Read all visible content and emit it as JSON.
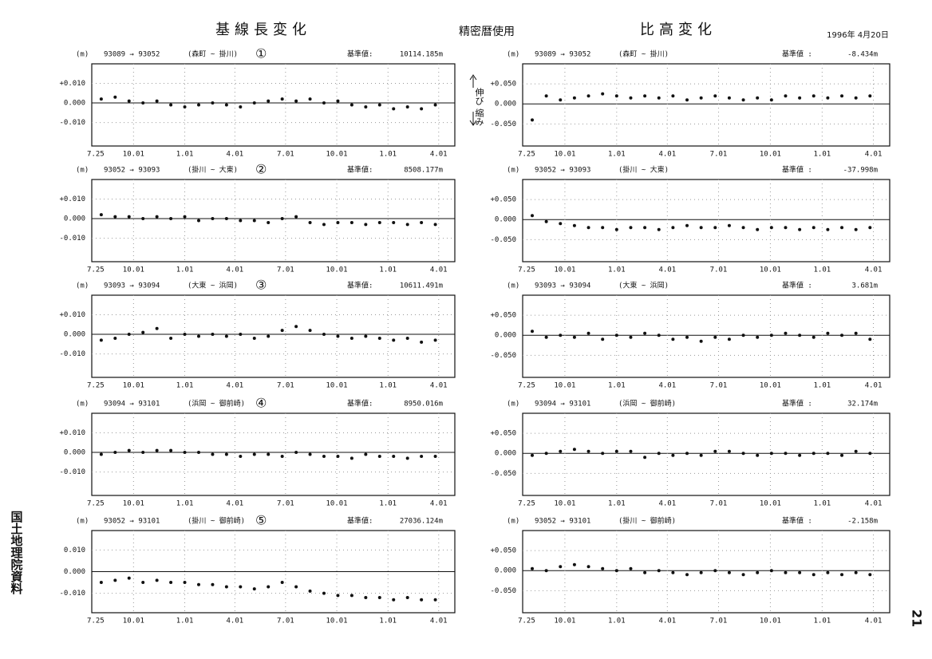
{
  "header": {
    "left_title": "基線長変化",
    "center_title": "精密暦使用",
    "right_title": "比高変化",
    "date": "1996年 4月20日"
  },
  "annotations": {
    "stretch": "伸び",
    "shrink": "縮み"
  },
  "footer": {
    "source": "国土地理院資料",
    "page": "21"
  },
  "chart_data": [
    {
      "type": "scatter",
      "unit": "(m)",
      "baseline": "93089 → 93052",
      "stations": "(森町 ~ 掛川)",
      "label": "①",
      "ref_label": "基準値:",
      "ref_value": "10114.185m",
      "color": "#111",
      "grid": true,
      "xlim": [
        -7,
        645
      ],
      "xticks": [
        {
          "value": 0,
          "label": "7.25"
        },
        {
          "value": 68,
          "label": "10.01"
        },
        {
          "value": 160,
          "label": "1.01"
        },
        {
          "value": 250,
          "label": "4.01"
        },
        {
          "value": 341,
          "label": "7.01"
        },
        {
          "value": 433,
          "label": "10.01"
        },
        {
          "value": 525,
          "label": "1.01"
        },
        {
          "value": 616,
          "label": "4.01"
        }
      ],
      "ylim": [
        -0.022,
        0.02
      ],
      "yticks": [
        {
          "value": 0.01,
          "label": "+0.010"
        },
        {
          "value": 0,
          "label": "0.000"
        },
        {
          "value": -0.01,
          "label": "-0.010"
        }
      ],
      "x": [
        10,
        35,
        60,
        85,
        110,
        135,
        160,
        185,
        210,
        235,
        260,
        285,
        310,
        335,
        360,
        385,
        410,
        435,
        460,
        485,
        510,
        535,
        560,
        585,
        610
      ],
      "values": [
        0.002,
        0.003,
        0.001,
        0.0,
        0.001,
        -0.001,
        -0.002,
        -0.001,
        0.0,
        -0.001,
        -0.002,
        0.0,
        0.001,
        0.002,
        0.001,
        0.002,
        0.0,
        0.001,
        -0.001,
        -0.002,
        -0.001,
        -0.003,
        -0.002,
        -0.003,
        -0.001
      ]
    },
    {
      "type": "scatter",
      "unit": "(m)",
      "baseline": "93052 → 93093",
      "stations": "(掛川 ~ 大東)",
      "label": "②",
      "ref_label": "基準値:",
      "ref_value": "8508.177m",
      "color": "#111",
      "grid": true,
      "xlim": [
        -7,
        645
      ],
      "xticks": [
        {
          "value": 0,
          "label": "7.25"
        },
        {
          "value": 68,
          "label": "10.01"
        },
        {
          "value": 160,
          "label": "1.01"
        },
        {
          "value": 250,
          "label": "4.01"
        },
        {
          "value": 341,
          "label": "7.01"
        },
        {
          "value": 433,
          "label": "10.01"
        },
        {
          "value": 525,
          "label": "1.01"
        },
        {
          "value": 616,
          "label": "4.01"
        }
      ],
      "ylim": [
        -0.022,
        0.02
      ],
      "yticks": [
        {
          "value": 0.01,
          "label": "+0.010"
        },
        {
          "value": 0,
          "label": "0.000"
        },
        {
          "value": -0.01,
          "label": "-0.010"
        }
      ],
      "x": [
        10,
        35,
        60,
        85,
        110,
        135,
        160,
        185,
        210,
        235,
        260,
        285,
        310,
        335,
        360,
        385,
        410,
        435,
        460,
        485,
        510,
        535,
        560,
        585,
        610
      ],
      "values": [
        0.002,
        0.001,
        0.001,
        0.0,
        0.001,
        0.0,
        0.001,
        -0.001,
        0.0,
        0.0,
        -0.001,
        -0.001,
        -0.002,
        0.0,
        0.001,
        -0.002,
        -0.003,
        -0.002,
        -0.002,
        -0.003,
        -0.002,
        -0.002,
        -0.003,
        -0.002,
        -0.003
      ]
    },
    {
      "type": "scatter",
      "unit": "(m)",
      "baseline": "93093 → 93094",
      "stations": "(大東 ~ 浜岡)",
      "label": "③",
      "ref_label": "基準値:",
      "ref_value": "10611.491m",
      "color": "#111",
      "grid": true,
      "xlim": [
        -7,
        645
      ],
      "xticks": [
        {
          "value": 0,
          "label": "7.25"
        },
        {
          "value": 68,
          "label": "10.01"
        },
        {
          "value": 160,
          "label": "1.01"
        },
        {
          "value": 250,
          "label": "4.01"
        },
        {
          "value": 341,
          "label": "7.01"
        },
        {
          "value": 433,
          "label": "10.01"
        },
        {
          "value": 525,
          "label": "1.01"
        },
        {
          "value": 616,
          "label": "4.01"
        }
      ],
      "ylim": [
        -0.022,
        0.02
      ],
      "yticks": [
        {
          "value": 0.01,
          "label": "+0.010"
        },
        {
          "value": 0,
          "label": "0.000"
        },
        {
          "value": -0.01,
          "label": "-0.010"
        }
      ],
      "x": [
        10,
        35,
        60,
        85,
        110,
        135,
        160,
        185,
        210,
        235,
        260,
        285,
        310,
        335,
        360,
        385,
        410,
        435,
        460,
        485,
        510,
        535,
        560,
        585,
        610
      ],
      "values": [
        -0.003,
        -0.002,
        0.0,
        0.001,
        0.003,
        -0.002,
        0.0,
        -0.001,
        0.0,
        -0.001,
        0.0,
        -0.002,
        -0.001,
        0.002,
        0.004,
        0.002,
        0.0,
        -0.001,
        -0.002,
        -0.001,
        -0.002,
        -0.003,
        -0.002,
        -0.004,
        -0.003
      ]
    },
    {
      "type": "scatter",
      "unit": "(m)",
      "baseline": "93094 → 93101",
      "stations": "(浜岡 ~ 御前崎)",
      "label": "④",
      "ref_label": "基準値:",
      "ref_value": "8950.016m",
      "color": "#111",
      "grid": true,
      "xlim": [
        -7,
        645
      ],
      "xticks": [
        {
          "value": 0,
          "label": "7.25"
        },
        {
          "value": 68,
          "label": "10.01"
        },
        {
          "value": 160,
          "label": "1.01"
        },
        {
          "value": 250,
          "label": "4.01"
        },
        {
          "value": 341,
          "label": "7.01"
        },
        {
          "value": 433,
          "label": "10.01"
        },
        {
          "value": 525,
          "label": "1.01"
        },
        {
          "value": 616,
          "label": "4.01"
        }
      ],
      "ylim": [
        -0.022,
        0.02
      ],
      "yticks": [
        {
          "value": 0.01,
          "label": "+0.010"
        },
        {
          "value": 0,
          "label": "0.000"
        },
        {
          "value": -0.01,
          "label": "-0.010"
        }
      ],
      "x": [
        10,
        35,
        60,
        85,
        110,
        135,
        160,
        185,
        210,
        235,
        260,
        285,
        310,
        335,
        360,
        385,
        410,
        435,
        460,
        485,
        510,
        535,
        560,
        585,
        610
      ],
      "values": [
        -0.001,
        0.0,
        0.001,
        0.0,
        0.001,
        0.001,
        0.0,
        0.0,
        -0.001,
        -0.001,
        -0.002,
        -0.001,
        -0.001,
        -0.002,
        0.0,
        -0.001,
        -0.002,
        -0.002,
        -0.003,
        -0.001,
        -0.002,
        -0.002,
        -0.003,
        -0.002,
        -0.002
      ]
    },
    {
      "type": "scatter",
      "unit": "(m)",
      "baseline": "93052 → 93101",
      "stations": "(掛川 ~ 御前崎)",
      "label": "⑤",
      "ref_label": "基準値:",
      "ref_value": "27036.124m",
      "color": "#111",
      "grid": true,
      "xlim": [
        -7,
        645
      ],
      "xticks": [
        {
          "value": 0,
          "label": "7.25"
        },
        {
          "value": 68,
          "label": "10.01"
        },
        {
          "value": 160,
          "label": "1.01"
        },
        {
          "value": 250,
          "label": "4.01"
        },
        {
          "value": 341,
          "label": "7.01"
        },
        {
          "value": 433,
          "label": "10.01"
        },
        {
          "value": 525,
          "label": "1.01"
        },
        {
          "value": 616,
          "label": "4.01"
        }
      ],
      "ylim": [
        -0.019,
        0.019
      ],
      "yticks": [
        {
          "value": 0.01,
          "label": "0.010"
        },
        {
          "value": 0,
          "label": "0.000"
        },
        {
          "value": -0.01,
          "label": "-0.010"
        }
      ],
      "x": [
        10,
        35,
        60,
        85,
        110,
        135,
        160,
        185,
        210,
        235,
        260,
        285,
        310,
        335,
        360,
        385,
        410,
        435,
        460,
        485,
        510,
        535,
        560,
        585,
        610
      ],
      "values": [
        -0.005,
        -0.004,
        -0.003,
        -0.005,
        -0.004,
        -0.005,
        -0.005,
        -0.006,
        -0.006,
        -0.007,
        -0.007,
        -0.008,
        -0.007,
        -0.005,
        -0.007,
        -0.009,
        -0.01,
        -0.011,
        -0.011,
        -0.012,
        -0.012,
        -0.013,
        -0.012,
        -0.013,
        -0.013
      ]
    },
    {
      "type": "scatter",
      "unit": "(m)",
      "baseline": "93089 → 93052",
      "stations": "(森町 ~ 掛川)",
      "ref_label": "基準値 :",
      "ref_value": "-8.434m",
      "color": "#111",
      "grid": true,
      "xlim": [
        -7,
        645
      ],
      "xticks": [
        {
          "value": 0,
          "label": "7.25"
        },
        {
          "value": 68,
          "label": "10.01"
        },
        {
          "value": 160,
          "label": "1.01"
        },
        {
          "value": 250,
          "label": "4.01"
        },
        {
          "value": 341,
          "label": "7.01"
        },
        {
          "value": 433,
          "label": "10.01"
        },
        {
          "value": 525,
          "label": "1.01"
        },
        {
          "value": 616,
          "label": "4.01"
        }
      ],
      "ylim": [
        -0.105,
        0.1
      ],
      "yticks": [
        {
          "value": 0.05,
          "label": "+0.050"
        },
        {
          "value": 0,
          "label": "0.000"
        },
        {
          "value": -0.05,
          "label": "-0.050"
        }
      ],
      "x": [
        10,
        35,
        60,
        85,
        110,
        135,
        160,
        185,
        210,
        235,
        260,
        285,
        310,
        335,
        360,
        385,
        410,
        435,
        460,
        485,
        510,
        535,
        560,
        585,
        610
      ],
      "values": [
        -0.04,
        0.02,
        0.01,
        0.015,
        0.02,
        0.025,
        0.02,
        0.015,
        0.02,
        0.015,
        0.02,
        0.01,
        0.015,
        0.02,
        0.015,
        0.01,
        0.015,
        0.01,
        0.02,
        0.015,
        0.02,
        0.015,
        0.02,
        0.015,
        0.02
      ]
    },
    {
      "type": "scatter",
      "unit": "(m)",
      "baseline": "93052 → 93093",
      "stations": "(掛川 ~ 大東)",
      "ref_label": "基準値 :",
      "ref_value": "-37.998m",
      "color": "#111",
      "grid": true,
      "xlim": [
        -7,
        645
      ],
      "xticks": [
        {
          "value": 0,
          "label": "7.25"
        },
        {
          "value": 68,
          "label": "10.01"
        },
        {
          "value": 160,
          "label": "1.01"
        },
        {
          "value": 250,
          "label": "4.01"
        },
        {
          "value": 341,
          "label": "7.01"
        },
        {
          "value": 433,
          "label": "10.01"
        },
        {
          "value": 525,
          "label": "1.01"
        },
        {
          "value": 616,
          "label": "4.01"
        }
      ],
      "ylim": [
        -0.105,
        0.1
      ],
      "yticks": [
        {
          "value": 0.05,
          "label": "+0.050"
        },
        {
          "value": 0,
          "label": "0.000"
        },
        {
          "value": -0.05,
          "label": "-0.050"
        }
      ],
      "x": [
        10,
        35,
        60,
        85,
        110,
        135,
        160,
        185,
        210,
        235,
        260,
        285,
        310,
        335,
        360,
        385,
        410,
        435,
        460,
        485,
        510,
        535,
        560,
        585,
        610
      ],
      "values": [
        0.01,
        -0.005,
        -0.01,
        -0.015,
        -0.02,
        -0.02,
        -0.025,
        -0.02,
        -0.02,
        -0.025,
        -0.02,
        -0.015,
        -0.02,
        -0.02,
        -0.015,
        -0.02,
        -0.025,
        -0.02,
        -0.02,
        -0.025,
        -0.02,
        -0.025,
        -0.02,
        -0.025,
        -0.02
      ]
    },
    {
      "type": "scatter",
      "unit": "(m)",
      "baseline": "93093 → 93094",
      "stations": "(大東 ~ 浜岡)",
      "ref_label": "基準値 :",
      "ref_value": "3.681m",
      "color": "#111",
      "grid": true,
      "xlim": [
        -7,
        645
      ],
      "xticks": [
        {
          "value": 0,
          "label": "7.25"
        },
        {
          "value": 68,
          "label": "10.01"
        },
        {
          "value": 160,
          "label": "1.01"
        },
        {
          "value": 250,
          "label": "4.01"
        },
        {
          "value": 341,
          "label": "7.01"
        },
        {
          "value": 433,
          "label": "10.01"
        },
        {
          "value": 525,
          "label": "1.01"
        },
        {
          "value": 616,
          "label": "4.01"
        }
      ],
      "ylim": [
        -0.105,
        0.1
      ],
      "yticks": [
        {
          "value": 0.05,
          "label": "+0.050"
        },
        {
          "value": 0,
          "label": "0.000"
        },
        {
          "value": -0.05,
          "label": "-0.050"
        }
      ],
      "x": [
        10,
        35,
        60,
        85,
        110,
        135,
        160,
        185,
        210,
        235,
        260,
        285,
        310,
        335,
        360,
        385,
        410,
        435,
        460,
        485,
        510,
        535,
        560,
        585,
        610
      ],
      "values": [
        0.01,
        -0.005,
        0.0,
        -0.005,
        0.005,
        -0.01,
        0.0,
        -0.005,
        0.005,
        0.0,
        -0.01,
        -0.005,
        -0.015,
        -0.005,
        -0.01,
        0.0,
        -0.005,
        0.0,
        0.005,
        0.0,
        -0.005,
        0.005,
        0.0,
        0.005,
        -0.01
      ]
    },
    {
      "type": "scatter",
      "unit": "(m)",
      "baseline": "93094 → 93101",
      "stations": "(浜岡 ~ 御前崎)",
      "ref_label": "基準値 :",
      "ref_value": "32.174m",
      "color": "#111",
      "grid": true,
      "xlim": [
        -7,
        645
      ],
      "xticks": [
        {
          "value": 0,
          "label": "7.25"
        },
        {
          "value": 68,
          "label": "10.01"
        },
        {
          "value": 160,
          "label": "1.01"
        },
        {
          "value": 250,
          "label": "4.01"
        },
        {
          "value": 341,
          "label": "7.01"
        },
        {
          "value": 433,
          "label": "10.01"
        },
        {
          "value": 525,
          "label": "1.01"
        },
        {
          "value": 616,
          "label": "4.01"
        }
      ],
      "ylim": [
        -0.105,
        0.1
      ],
      "yticks": [
        {
          "value": 0.05,
          "label": "+0.050"
        },
        {
          "value": 0,
          "label": "0.000"
        },
        {
          "value": -0.05,
          "label": "-0.050"
        }
      ],
      "x": [
        10,
        35,
        60,
        85,
        110,
        135,
        160,
        185,
        210,
        235,
        260,
        285,
        310,
        335,
        360,
        385,
        410,
        435,
        460,
        485,
        510,
        535,
        560,
        585,
        610
      ],
      "values": [
        -0.005,
        0.0,
        0.005,
        0.01,
        0.005,
        0.0,
        0.005,
        0.005,
        -0.01,
        0.0,
        -0.005,
        0.0,
        -0.005,
        0.005,
        0.005,
        0.0,
        -0.005,
        0.0,
        0.0,
        -0.005,
        0.0,
        0.0,
        -0.005,
        0.005,
        0.0
      ]
    },
    {
      "type": "scatter",
      "unit": "(m)",
      "baseline": "93052 → 93101",
      "stations": "(掛川 ~ 御前崎)",
      "ref_label": "基準値 :",
      "ref_value": "-2.158m",
      "color": "#111",
      "grid": true,
      "xlim": [
        -7,
        645
      ],
      "xticks": [
        {
          "value": 0,
          "label": "7.25"
        },
        {
          "value": 68,
          "label": "10.01"
        },
        {
          "value": 160,
          "label": "1.01"
        },
        {
          "value": 250,
          "label": "4.01"
        },
        {
          "value": 341,
          "label": "7.01"
        },
        {
          "value": 433,
          "label": "10.01"
        },
        {
          "value": 525,
          "label": "1.01"
        },
        {
          "value": 616,
          "label": "4.01"
        }
      ],
      "ylim": [
        -0.105,
        0.1
      ],
      "yticks": [
        {
          "value": 0.05,
          "label": "+0.050"
        },
        {
          "value": 0,
          "label": "0.000"
        },
        {
          "value": -0.05,
          "label": "-0.050"
        }
      ],
      "x": [
        10,
        35,
        60,
        85,
        110,
        135,
        160,
        185,
        210,
        235,
        260,
        285,
        310,
        335,
        360,
        385,
        410,
        435,
        460,
        485,
        510,
        535,
        560,
        585,
        610
      ],
      "values": [
        0.005,
        0.0,
        0.01,
        0.015,
        0.01,
        0.005,
        0.0,
        0.005,
        -0.005,
        0.0,
        -0.005,
        -0.01,
        -0.005,
        0.0,
        -0.005,
        -0.01,
        -0.005,
        0.0,
        -0.005,
        -0.005,
        -0.01,
        -0.005,
        -0.01,
        -0.005,
        -0.01
      ]
    }
  ]
}
